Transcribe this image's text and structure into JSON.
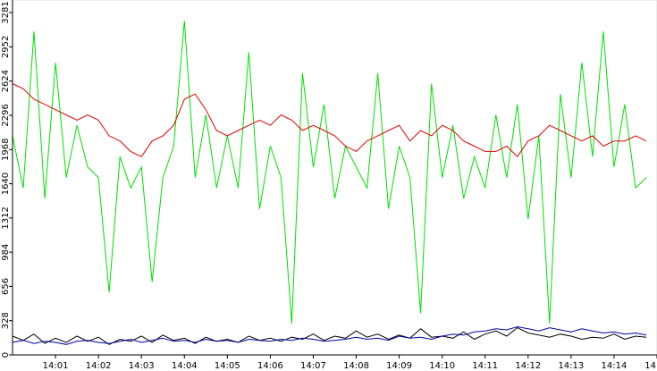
{
  "chart_data": {
    "type": "line",
    "x": [
      0,
      0.25,
      0.5,
      0.75,
      1,
      1.25,
      1.5,
      1.75,
      2,
      2.25,
      2.5,
      2.75,
      3,
      3.25,
      3.5,
      3.75,
      4,
      4.25,
      4.5,
      4.75,
      5,
      5.25,
      5.5,
      5.75,
      6,
      6.25,
      6.5,
      6.75,
      7,
      7.25,
      7.5,
      7.75,
      8,
      8.25,
      8.5,
      8.75,
      9,
      9.25,
      9.5,
      9.75,
      10,
      10.25,
      10.5,
      10.75,
      11,
      11.25,
      11.5,
      11.75,
      12,
      12.25,
      12.5,
      12.75,
      13,
      13.25,
      13.5,
      13.75,
      14,
      14.25,
      14.5,
      14.75
    ],
    "series": [
      {
        "color": "#00e000",
        "values": [
          2100,
          1600,
          3100,
          1500,
          2800,
          1700,
          2200,
          1800,
          1700,
          600,
          1900,
          1600,
          1800,
          700,
          1700,
          2000,
          3200,
          1700,
          2300,
          1600,
          2100,
          1600,
          2900,
          1400,
          2000,
          1700,
          300,
          2700,
          1800,
          2400,
          1500,
          2000,
          1800,
          1600,
          2700,
          1400,
          2000,
          1700,
          400,
          2600,
          1700,
          2200,
          1500,
          1900,
          1600,
          2300,
          1700,
          2400,
          1300,
          2100,
          300,
          2500,
          1700,
          2800,
          1900,
          3100,
          1800,
          2400,
          1600,
          1700
        ]
      },
      {
        "color": "#e00000",
        "values": [
          2600,
          2550,
          2450,
          2400,
          2350,
          2300,
          2250,
          2300,
          2250,
          2100,
          2050,
          1950,
          1900,
          2050,
          2100,
          2200,
          2450,
          2500,
          2350,
          2150,
          2100,
          2150,
          2200,
          2250,
          2200,
          2300,
          2250,
          2150,
          2200,
          2150,
          2100,
          2000,
          1950,
          2050,
          2100,
          2150,
          2200,
          2050,
          2150,
          2100,
          2200,
          2150,
          2050,
          2000,
          1950,
          1950,
          2000,
          1900,
          2050,
          2100,
          2200,
          2150,
          2100,
          2050,
          2100,
          2000,
          2050,
          2050,
          2100,
          2050
        ]
      },
      {
        "color": "#000000",
        "values": [
          180,
          140,
          200,
          110,
          160,
          120,
          180,
          130,
          170,
          100,
          150,
          130,
          180,
          120,
          190,
          140,
          160,
          110,
          170,
          130,
          150,
          120,
          180,
          140,
          160,
          130,
          170,
          150,
          200,
          140,
          180,
          160,
          230,
          170,
          200,
          150,
          190,
          160,
          250,
          170,
          180,
          160,
          220,
          150,
          200,
          230,
          180,
          260,
          210,
          190,
          170,
          200,
          180,
          150,
          170,
          160,
          200,
          150,
          180,
          170
        ]
      },
      {
        "color": "#0000a0",
        "values": [
          120,
          140,
          110,
          130,
          120,
          100,
          130,
          140,
          120,
          110,
          130,
          150,
          120,
          140,
          160,
          130,
          140,
          120,
          150,
          130,
          140,
          120,
          150,
          140,
          130,
          150,
          140,
          160,
          150,
          130,
          140,
          150,
          170,
          150,
          160,
          140,
          180,
          160,
          170,
          150,
          180,
          200,
          190,
          220,
          230,
          250,
          240,
          270,
          250,
          230,
          260,
          240,
          220,
          250,
          230,
          210,
          220,
          200,
          210,
          190
        ]
      }
    ],
    "xlim": [
      0,
      15
    ],
    "xticks": [
      {
        "value": 1,
        "label": "14:01"
      },
      {
        "value": 2,
        "label": "14:02"
      },
      {
        "value": 3,
        "label": "14:03"
      },
      {
        "value": 4,
        "label": "14:04"
      },
      {
        "value": 5,
        "label": "14:05"
      },
      {
        "value": 6,
        "label": "14:06"
      },
      {
        "value": 7,
        "label": "14:07"
      },
      {
        "value": 8,
        "label": "14:08"
      },
      {
        "value": 9,
        "label": "14:09"
      },
      {
        "value": 10,
        "label": "14:10"
      },
      {
        "value": 11,
        "label": "14:11"
      },
      {
        "value": 12,
        "label": "14:12"
      },
      {
        "value": 13,
        "label": "14:13"
      },
      {
        "value": 14,
        "label": "14:14"
      },
      {
        "value": 15,
        "label": "14"
      }
    ],
    "ylim": [
      0,
      3281
    ],
    "yticks": [
      0,
      328,
      656,
      984,
      1312,
      1640,
      1968,
      2296,
      2624,
      2952,
      3281
    ]
  }
}
